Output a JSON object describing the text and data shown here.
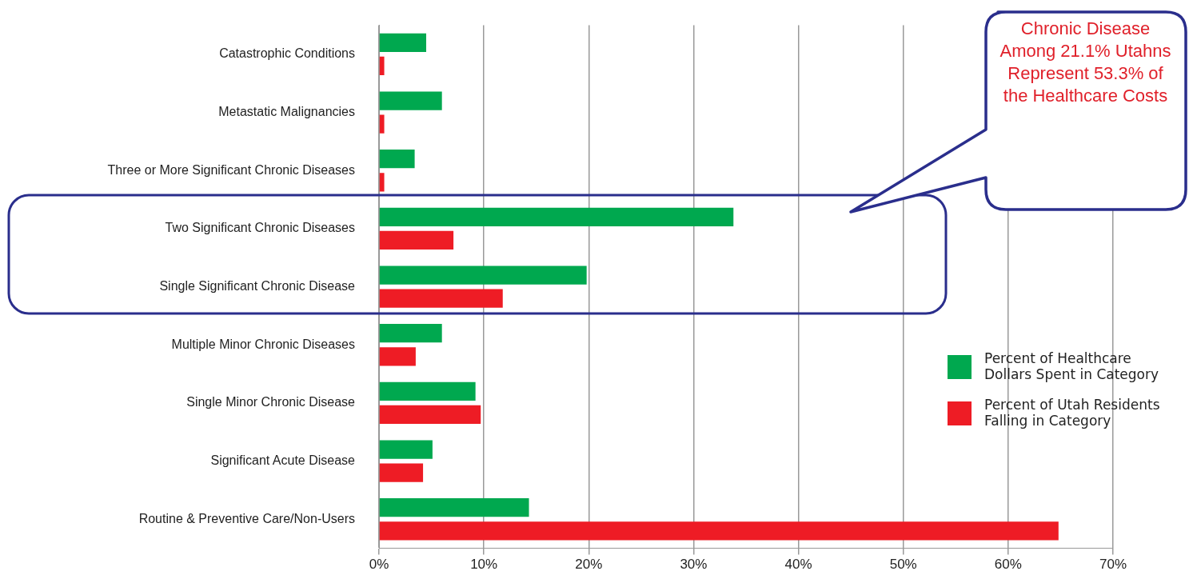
{
  "chart_data": {
    "type": "bar",
    "orientation": "horizontal",
    "categories": [
      "Catastrophic Conditions",
      "Metastatic Malignancies",
      "Three or More Significant Chronic Diseases",
      "Two Significant Chronic Diseases",
      "Single Significant Chronic Disease",
      "Multiple Minor Chronic Diseases",
      "Single Minor Chronic Disease",
      "Significant Acute Disease",
      "Routine & Preventive Care/Non-Users"
    ],
    "series": [
      {
        "name": "Percent of Healthcare Dollars Spent in Category",
        "color": "#00a84f",
        "values": [
          4.5,
          6.0,
          3.4,
          33.8,
          19.8,
          6.0,
          9.2,
          5.1,
          14.3
        ]
      },
      {
        "name": "Percent of Utah Residents Falling in Category",
        "color": "#ee1c25",
        "values": [
          0.5,
          0.5,
          0.5,
          7.1,
          11.8,
          3.5,
          9.7,
          4.2,
          64.8
        ]
      }
    ],
    "xlim": [
      0,
      70
    ],
    "xticks": [
      {
        "value": 0,
        "label": "0%"
      },
      {
        "value": 10,
        "label": "10%"
      },
      {
        "value": 20,
        "label": "20%"
      },
      {
        "value": 30,
        "label": "30%"
      },
      {
        "value": 40,
        "label": "40%"
      },
      {
        "value": 50,
        "label": "50%"
      },
      {
        "value": 60,
        "label": "60%"
      },
      {
        "value": 70,
        "label": "70%"
      }
    ],
    "grid": "x",
    "legend": "right",
    "annotations": [
      "Chronic Disease Among 21.1% Utahns Represent 53.3% of the Healthcare Costs"
    ]
  }
}
